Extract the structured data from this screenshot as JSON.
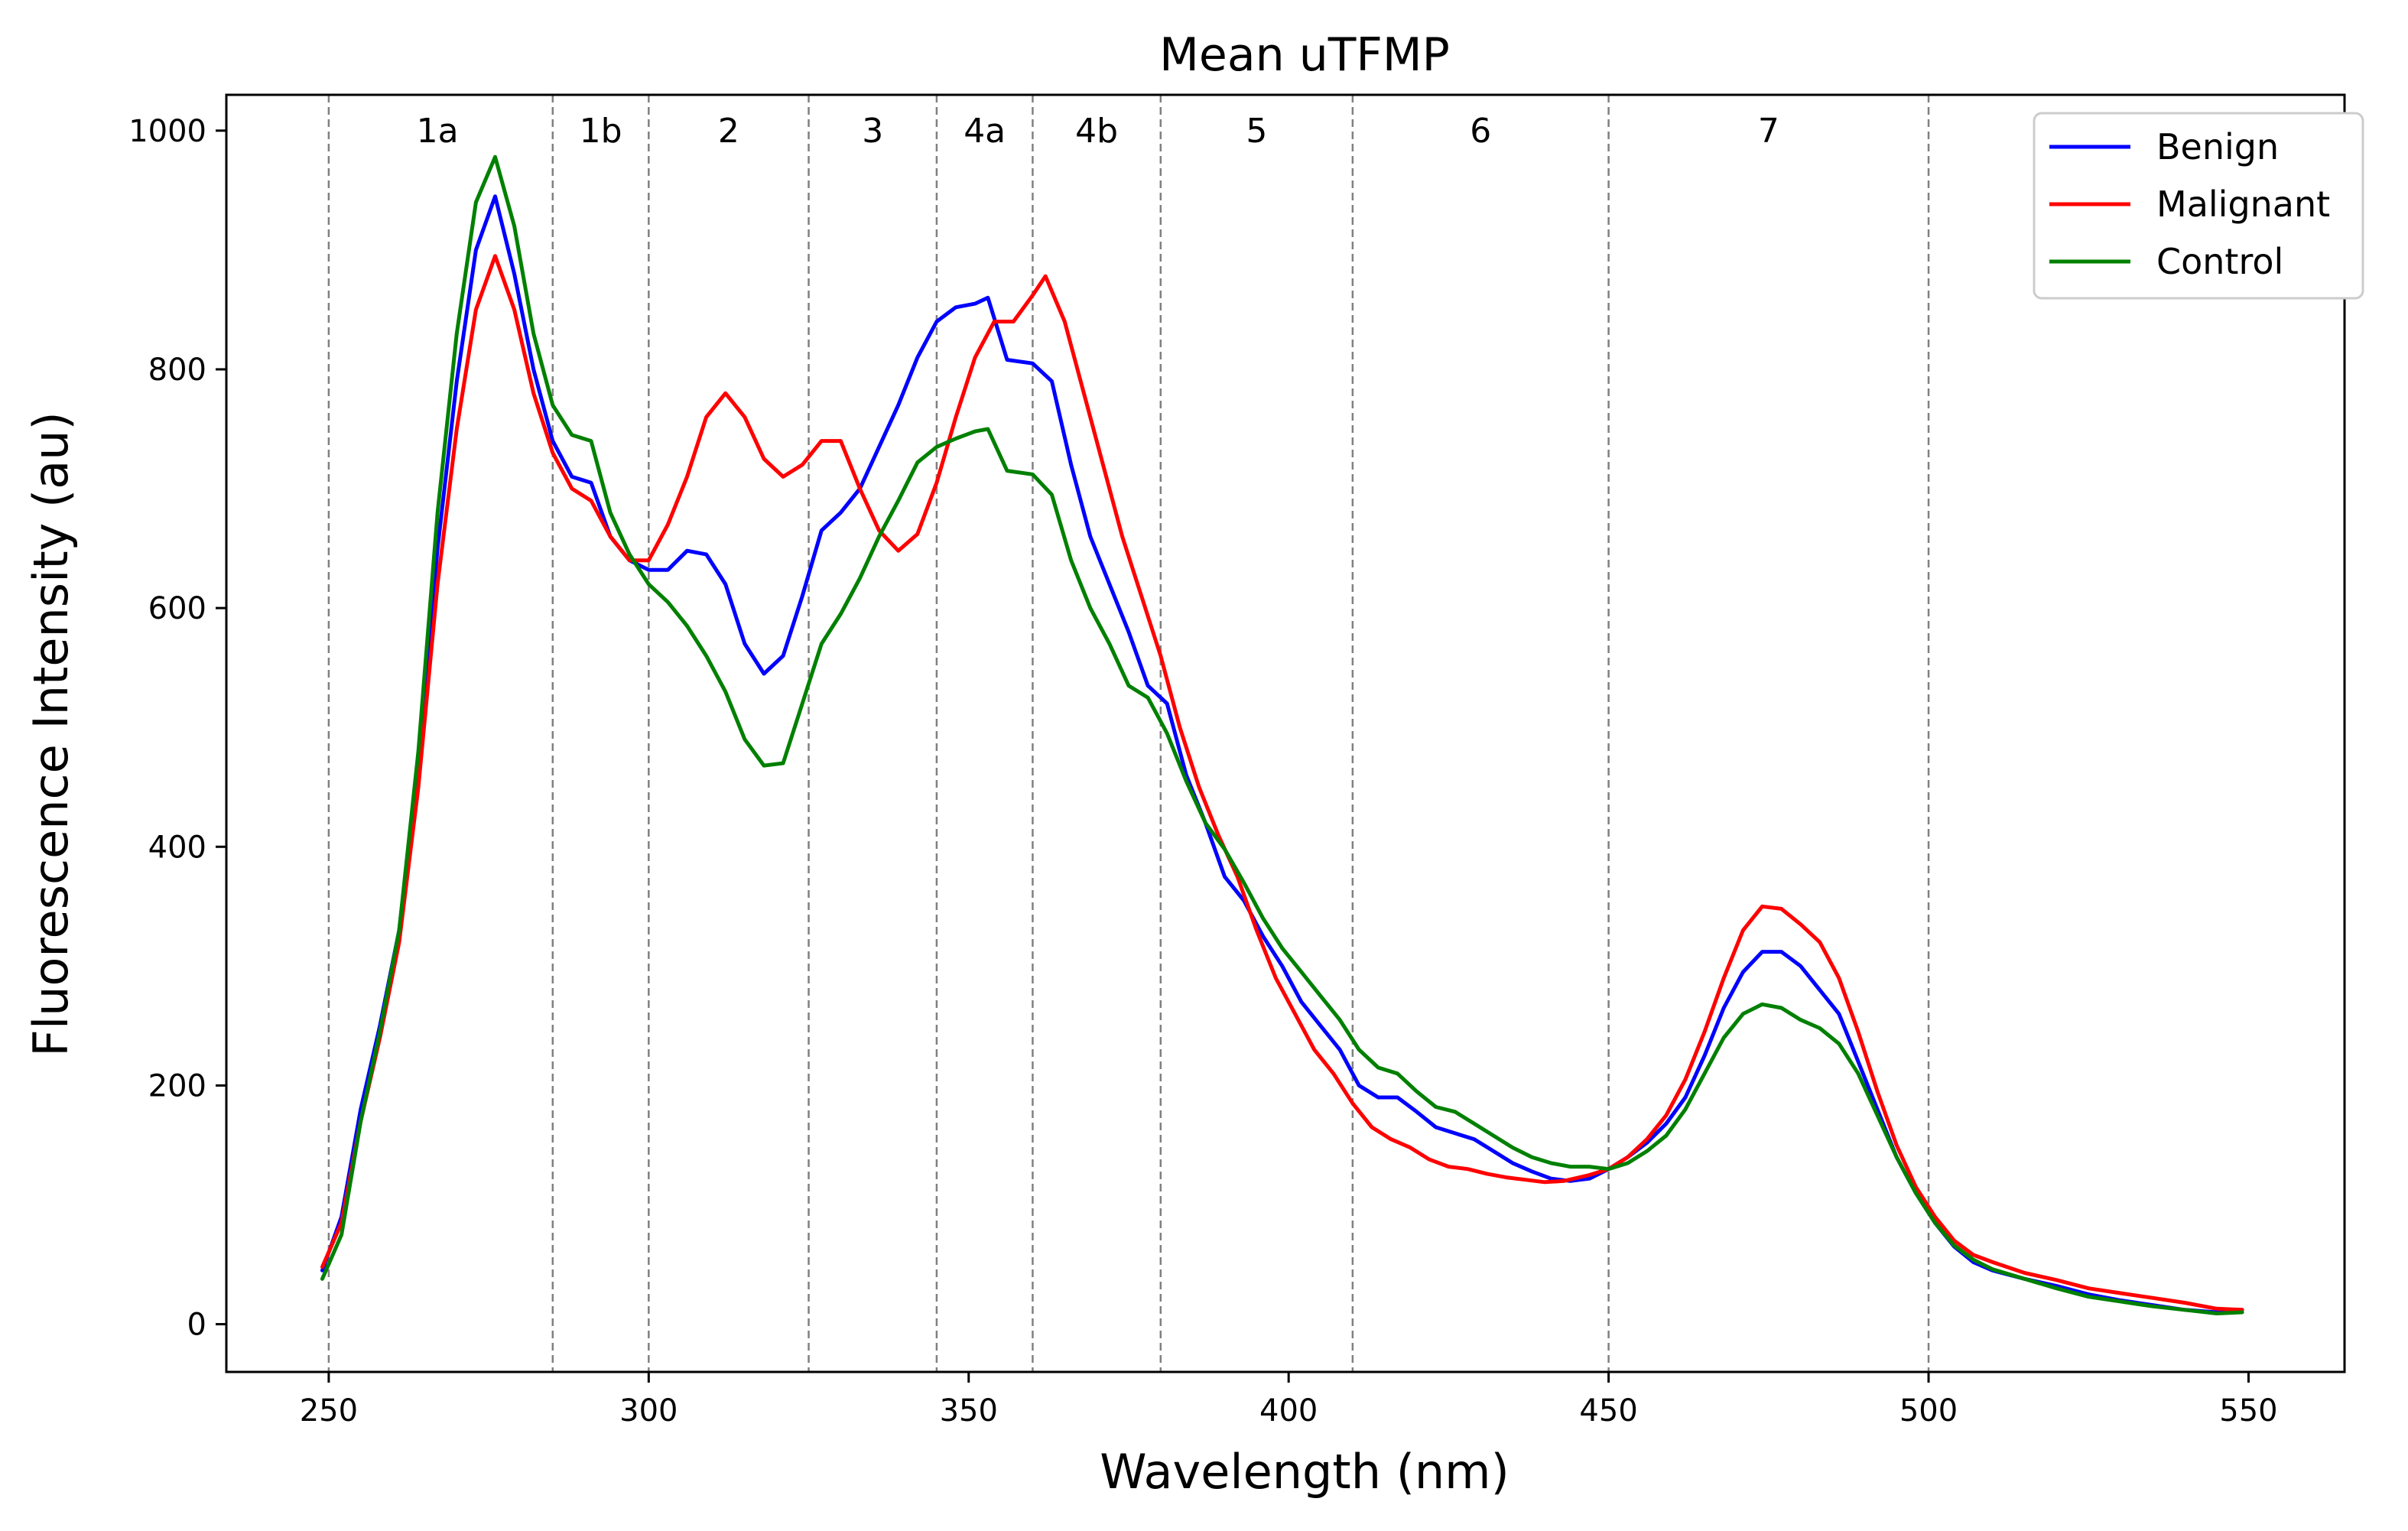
{
  "chart_data": {
    "type": "line",
    "title": "Mean uTFMP",
    "xlabel": "Wavelength (nm)",
    "ylabel": "Fluorescence Intensity (au)",
    "xlim": [
      234,
      565
    ],
    "ylim": [
      -40,
      1030
    ],
    "xticks": [
      250,
      300,
      350,
      400,
      450,
      500,
      550
    ],
    "yticks": [
      0,
      200,
      400,
      600,
      800,
      1000
    ],
    "grid": false,
    "legend_position": "top-right",
    "regions": {
      "boundaries": [
        250,
        285,
        300,
        325,
        345,
        360,
        380,
        410,
        450,
        500
      ],
      "labels": [
        {
          "label": "1a",
          "x": 267
        },
        {
          "label": "1b",
          "x": 292.5
        },
        {
          "label": "2",
          "x": 312.5
        },
        {
          "label": "3",
          "x": 335
        },
        {
          "label": "4a",
          "x": 352.5
        },
        {
          "label": "4b",
          "x": 370
        },
        {
          "label": "5",
          "x": 395
        },
        {
          "label": "6",
          "x": 430
        },
        {
          "label": "7",
          "x": 475
        }
      ]
    },
    "series": [
      {
        "name": "Benign",
        "color": "#0000ff",
        "points": [
          [
            249,
            45
          ],
          [
            252,
            90
          ],
          [
            255,
            180
          ],
          [
            258,
            250
          ],
          [
            261,
            330
          ],
          [
            264,
            470
          ],
          [
            267,
            650
          ],
          [
            270,
            790
          ],
          [
            273,
            900
          ],
          [
            276,
            945
          ],
          [
            279,
            880
          ],
          [
            282,
            800
          ],
          [
            285,
            740
          ],
          [
            288,
            710
          ],
          [
            291,
            705
          ],
          [
            294,
            660
          ],
          [
            297,
            640
          ],
          [
            300,
            632
          ],
          [
            303,
            632
          ],
          [
            306,
            648
          ],
          [
            309,
            645
          ],
          [
            312,
            620
          ],
          [
            315,
            570
          ],
          [
            318,
            545
          ],
          [
            321,
            560
          ],
          [
            324,
            610
          ],
          [
            327,
            665
          ],
          [
            330,
            680
          ],
          [
            333,
            700
          ],
          [
            336,
            735
          ],
          [
            339,
            770
          ],
          [
            342,
            810
          ],
          [
            345,
            840
          ],
          [
            348,
            852
          ],
          [
            351,
            855
          ],
          [
            353,
            860
          ],
          [
            356,
            808
          ],
          [
            360,
            805
          ],
          [
            363,
            790
          ],
          [
            366,
            720
          ],
          [
            369,
            660
          ],
          [
            372,
            620
          ],
          [
            375,
            580
          ],
          [
            378,
            535
          ],
          [
            381,
            520
          ],
          [
            384,
            460
          ],
          [
            387,
            420
          ],
          [
            390,
            375
          ],
          [
            393,
            355
          ],
          [
            396,
            325
          ],
          [
            399,
            300
          ],
          [
            402,
            270
          ],
          [
            405,
            250
          ],
          [
            408,
            230
          ],
          [
            411,
            200
          ],
          [
            414,
            190
          ],
          [
            417,
            190
          ],
          [
            420,
            178
          ],
          [
            423,
            165
          ],
          [
            426,
            160
          ],
          [
            429,
            155
          ],
          [
            432,
            145
          ],
          [
            435,
            135
          ],
          [
            438,
            128
          ],
          [
            441,
            122
          ],
          [
            444,
            120
          ],
          [
            447,
            122
          ],
          [
            450,
            130
          ],
          [
            453,
            140
          ],
          [
            456,
            152
          ],
          [
            459,
            168
          ],
          [
            462,
            190
          ],
          [
            465,
            225
          ],
          [
            468,
            265
          ],
          [
            471,
            295
          ],
          [
            474,
            312
          ],
          [
            477,
            312
          ],
          [
            480,
            300
          ],
          [
            483,
            280
          ],
          [
            486,
            260
          ],
          [
            489,
            220
          ],
          [
            492,
            180
          ],
          [
            495,
            140
          ],
          [
            498,
            110
          ],
          [
            501,
            85
          ],
          [
            504,
            65
          ],
          [
            507,
            52
          ],
          [
            510,
            45
          ],
          [
            515,
            38
          ],
          [
            520,
            32
          ],
          [
            525,
            25
          ],
          [
            530,
            20
          ],
          [
            535,
            16
          ],
          [
            540,
            12
          ],
          [
            545,
            10
          ],
          [
            549,
            12
          ]
        ]
      },
      {
        "name": "Malignant",
        "color": "#ff0000",
        "points": [
          [
            249,
            48
          ],
          [
            252,
            85
          ],
          [
            255,
            170
          ],
          [
            258,
            240
          ],
          [
            261,
            320
          ],
          [
            264,
            450
          ],
          [
            267,
            620
          ],
          [
            270,
            750
          ],
          [
            273,
            850
          ],
          [
            276,
            895
          ],
          [
            279,
            850
          ],
          [
            282,
            780
          ],
          [
            285,
            730
          ],
          [
            288,
            700
          ],
          [
            291,
            690
          ],
          [
            294,
            660
          ],
          [
            297,
            640
          ],
          [
            300,
            640
          ],
          [
            303,
            670
          ],
          [
            306,
            710
          ],
          [
            309,
            760
          ],
          [
            312,
            780
          ],
          [
            315,
            760
          ],
          [
            318,
            725
          ],
          [
            321,
            710
          ],
          [
            324,
            720
          ],
          [
            327,
            740
          ],
          [
            330,
            740
          ],
          [
            333,
            700
          ],
          [
            336,
            665
          ],
          [
            339,
            648
          ],
          [
            342,
            662
          ],
          [
            345,
            705
          ],
          [
            348,
            760
          ],
          [
            351,
            810
          ],
          [
            354,
            840
          ],
          [
            357,
            840
          ],
          [
            360,
            862
          ],
          [
            362,
            878
          ],
          [
            365,
            840
          ],
          [
            368,
            780
          ],
          [
            371,
            720
          ],
          [
            374,
            660
          ],
          [
            377,
            610
          ],
          [
            380,
            560
          ],
          [
            383,
            500
          ],
          [
            386,
            450
          ],
          [
            389,
            410
          ],
          [
            392,
            375
          ],
          [
            395,
            330
          ],
          [
            398,
            290
          ],
          [
            401,
            260
          ],
          [
            404,
            230
          ],
          [
            407,
            210
          ],
          [
            410,
            185
          ],
          [
            413,
            165
          ],
          [
            416,
            155
          ],
          [
            419,
            148
          ],
          [
            422,
            138
          ],
          [
            425,
            132
          ],
          [
            428,
            130
          ],
          [
            431,
            126
          ],
          [
            434,
            123
          ],
          [
            437,
            121
          ],
          [
            440,
            119
          ],
          [
            443,
            120
          ],
          [
            447,
            125
          ],
          [
            450,
            130
          ],
          [
            453,
            140
          ],
          [
            456,
            155
          ],
          [
            459,
            175
          ],
          [
            462,
            205
          ],
          [
            465,
            245
          ],
          [
            468,
            290
          ],
          [
            471,
            330
          ],
          [
            474,
            350
          ],
          [
            477,
            348
          ],
          [
            480,
            335
          ],
          [
            483,
            320
          ],
          [
            486,
            290
          ],
          [
            489,
            245
          ],
          [
            492,
            195
          ],
          [
            495,
            150
          ],
          [
            498,
            115
          ],
          [
            501,
            90
          ],
          [
            504,
            70
          ],
          [
            507,
            58
          ],
          [
            510,
            52
          ],
          [
            515,
            43
          ],
          [
            520,
            37
          ],
          [
            525,
            30
          ],
          [
            530,
            26
          ],
          [
            535,
            22
          ],
          [
            540,
            18
          ],
          [
            545,
            13
          ],
          [
            549,
            12
          ]
        ]
      },
      {
        "name": "Control",
        "color": "#008000",
        "points": [
          [
            249,
            38
          ],
          [
            252,
            75
          ],
          [
            255,
            170
          ],
          [
            258,
            245
          ],
          [
            261,
            330
          ],
          [
            264,
            480
          ],
          [
            267,
            680
          ],
          [
            270,
            830
          ],
          [
            273,
            940
          ],
          [
            276,
            978
          ],
          [
            279,
            920
          ],
          [
            282,
            830
          ],
          [
            285,
            770
          ],
          [
            288,
            745
          ],
          [
            291,
            740
          ],
          [
            294,
            680
          ],
          [
            297,
            645
          ],
          [
            300,
            620
          ],
          [
            303,
            605
          ],
          [
            306,
            585
          ],
          [
            309,
            560
          ],
          [
            312,
            530
          ],
          [
            315,
            490
          ],
          [
            318,
            468
          ],
          [
            321,
            470
          ],
          [
            324,
            520
          ],
          [
            327,
            570
          ],
          [
            330,
            595
          ],
          [
            333,
            625
          ],
          [
            336,
            660
          ],
          [
            339,
            690
          ],
          [
            342,
            722
          ],
          [
            345,
            735
          ],
          [
            348,
            742
          ],
          [
            351,
            748
          ],
          [
            353,
            750
          ],
          [
            356,
            715
          ],
          [
            360,
            712
          ],
          [
            363,
            695
          ],
          [
            366,
            640
          ],
          [
            369,
            600
          ],
          [
            372,
            570
          ],
          [
            375,
            535
          ],
          [
            378,
            525
          ],
          [
            381,
            495
          ],
          [
            384,
            455
          ],
          [
            387,
            420
          ],
          [
            390,
            398
          ],
          [
            393,
            370
          ],
          [
            396,
            340
          ],
          [
            399,
            315
          ],
          [
            402,
            295
          ],
          [
            405,
            275
          ],
          [
            408,
            255
          ],
          [
            411,
            230
          ],
          [
            414,
            215
          ],
          [
            417,
            210
          ],
          [
            420,
            195
          ],
          [
            423,
            182
          ],
          [
            426,
            178
          ],
          [
            429,
            168
          ],
          [
            432,
            158
          ],
          [
            435,
            148
          ],
          [
            438,
            140
          ],
          [
            441,
            135
          ],
          [
            444,
            132
          ],
          [
            447,
            132
          ],
          [
            450,
            130
          ],
          [
            453,
            135
          ],
          [
            456,
            145
          ],
          [
            459,
            158
          ],
          [
            462,
            180
          ],
          [
            465,
            210
          ],
          [
            468,
            240
          ],
          [
            471,
            260
          ],
          [
            474,
            268
          ],
          [
            477,
            265
          ],
          [
            480,
            255
          ],
          [
            483,
            248
          ],
          [
            486,
            235
          ],
          [
            489,
            210
          ],
          [
            492,
            175
          ],
          [
            495,
            140
          ],
          [
            498,
            110
          ],
          [
            501,
            85
          ],
          [
            504,
            66
          ],
          [
            507,
            54
          ],
          [
            510,
            46
          ],
          [
            515,
            38
          ],
          [
            520,
            30
          ],
          [
            525,
            23
          ],
          [
            530,
            19
          ],
          [
            535,
            15
          ],
          [
            540,
            12
          ],
          [
            545,
            9
          ],
          [
            549,
            10
          ]
        ]
      }
    ]
  }
}
